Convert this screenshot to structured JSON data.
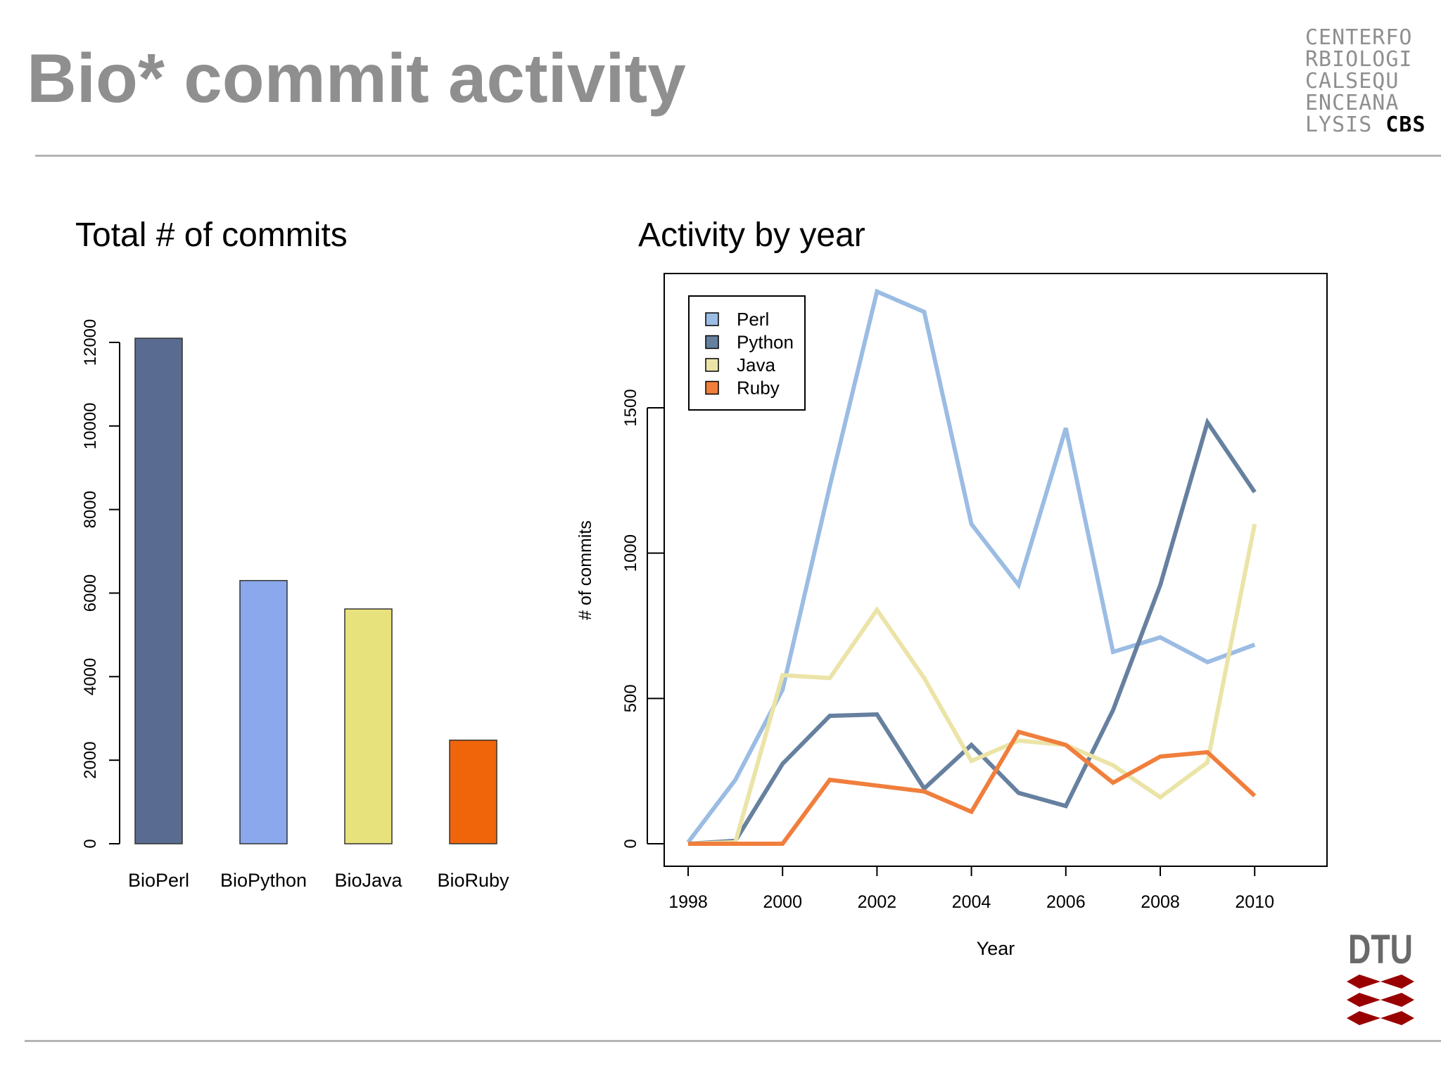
{
  "slide": {
    "title": "Bio* commit activity"
  },
  "cbs_logo": {
    "lines": [
      "CENTERFO",
      "RBIOLOGI",
      "CALSEQU",
      "ENCEANA"
    ],
    "last_line_prefix": "LYSIS ",
    "last_line_strong": "CBS"
  },
  "dtu_logo": {
    "text": "DTU",
    "color": "#990000"
  },
  "chart_data": [
    {
      "type": "bar",
      "title": "Total # of commits",
      "xlabel": "",
      "ylabel": "",
      "categories": [
        "BioPerl",
        "BioPython",
        "BioJava",
        "BioRuby"
      ],
      "values": [
        12100,
        6300,
        5620,
        2480
      ],
      "colors": [
        "#5a6b91",
        "#8aa8eb",
        "#e8e27d",
        "#f0650a"
      ],
      "ylim": [
        0,
        12000
      ],
      "yticks": [
        0,
        2000,
        4000,
        6000,
        8000,
        10000,
        12000
      ],
      "grid": false,
      "legend": "none"
    },
    {
      "type": "line",
      "title": "Activity by year",
      "xlabel": "Year",
      "ylabel": "# of commits",
      "x": [
        1998,
        1999,
        2000,
        2001,
        2002,
        2003,
        2004,
        2005,
        2006,
        2007,
        2008,
        2009,
        2010
      ],
      "xticks": [
        1998,
        2000,
        2002,
        2004,
        2006,
        2008,
        2010
      ],
      "yticks": [
        0,
        500,
        1000,
        1500
      ],
      "xlim": [
        1998,
        2011.5
      ],
      "ylim": [
        0,
        1900
      ],
      "grid": false,
      "legend": "top-left",
      "series": [
        {
          "name": "Perl",
          "color": "#9bbce3",
          "values": [
            5,
            220,
            530,
            1230,
            1900,
            1830,
            1100,
            890,
            1430,
            660,
            710,
            625,
            685
          ]
        },
        {
          "name": "Python",
          "color": "#66809f",
          "values": [
            0,
            10,
            275,
            440,
            445,
            190,
            340,
            175,
            130,
            460,
            890,
            1450,
            1210
          ]
        },
        {
          "name": "Java",
          "color": "#ebe4a7",
          "values": [
            0,
            5,
            580,
            570,
            805,
            570,
            285,
            355,
            340,
            270,
            160,
            280,
            1100
          ]
        },
        {
          "name": "Ruby",
          "color": "#f07e3c",
          "values": [
            0,
            0,
            0,
            220,
            200,
            180,
            110,
            385,
            340,
            210,
            300,
            315,
            165
          ]
        }
      ]
    }
  ]
}
